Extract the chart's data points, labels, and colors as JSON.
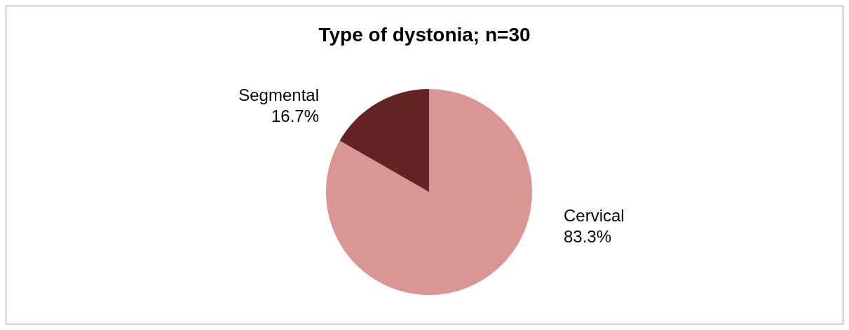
{
  "chart_data": {
    "type": "pie",
    "title": "Type of dystonia; n=30",
    "categories": [
      "Cervical",
      "Segmental"
    ],
    "values": [
      83.3,
      16.7
    ],
    "value_labels": [
      "83.3%",
      "16.7%"
    ],
    "colors": [
      "#d99694",
      "#632423"
    ],
    "legend": false
  }
}
